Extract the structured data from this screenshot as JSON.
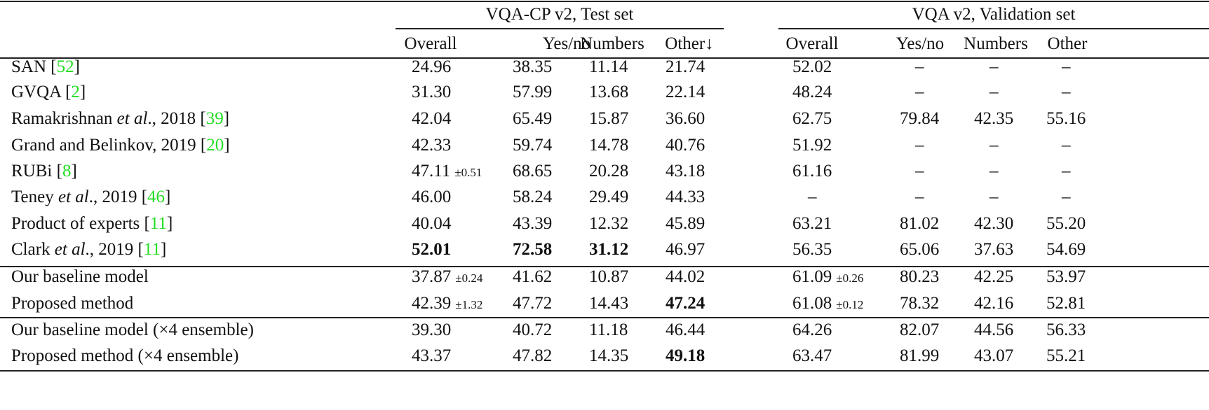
{
  "table": {
    "groups": [
      {
        "label": "VQA-CP v2, Test set"
      },
      {
        "label": "VQA v2, Validation set"
      }
    ],
    "columns": {
      "left": [
        "Overall",
        "Yes/no",
        "Numbers",
        "Other↓"
      ],
      "right": [
        "Overall",
        "Yes/no",
        "Numbers",
        "Other"
      ]
    },
    "rows": [
      {
        "method": "SAN",
        "method_italic": "",
        "method_tail": "",
        "cite": "52",
        "cp": {
          "overall": "24.96",
          "overall_pm": "",
          "yesno": "38.35",
          "numbers": "11.14",
          "other": "21.74"
        },
        "val": {
          "overall": "52.02",
          "overall_pm": "",
          "yesno": "–",
          "numbers": "–",
          "other": "–"
        }
      },
      {
        "method": "GVQA",
        "method_italic": "",
        "method_tail": "",
        "cite": "2",
        "cp": {
          "overall": "31.30",
          "overall_pm": "",
          "yesno": "57.99",
          "numbers": "13.68",
          "other": "22.14"
        },
        "val": {
          "overall": "48.24",
          "overall_pm": "",
          "yesno": "–",
          "numbers": "–",
          "other": "–"
        }
      },
      {
        "method": "Ramakrishnan",
        "method_italic": "et al",
        "method_tail": "., 2018",
        "cite": "39",
        "cp": {
          "overall": "42.04",
          "overall_pm": "",
          "yesno": "65.49",
          "numbers": "15.87",
          "other": "36.60"
        },
        "val": {
          "overall": "62.75",
          "overall_pm": "",
          "yesno": "79.84",
          "numbers": "42.35",
          "other": "55.16"
        }
      },
      {
        "method": "Grand and Belinkov, 2019",
        "method_italic": "",
        "method_tail": "",
        "cite": "20",
        "cp": {
          "overall": "42.33",
          "overall_pm": "",
          "yesno": "59.74",
          "numbers": "14.78",
          "other": "40.76"
        },
        "val": {
          "overall": "51.92",
          "overall_pm": "",
          "yesno": "–",
          "numbers": "–",
          "other": "–"
        }
      },
      {
        "method": "RUBi",
        "method_italic": "",
        "method_tail": "",
        "cite": "8",
        "cp": {
          "overall": "47.11",
          "overall_pm": "±0.51",
          "yesno": "68.65",
          "numbers": "20.28",
          "other": "43.18"
        },
        "val": {
          "overall": "61.16",
          "overall_pm": "",
          "yesno": "–",
          "numbers": "–",
          "other": "–"
        }
      },
      {
        "method": "Teney",
        "method_italic": "et al",
        "method_tail": "., 2019",
        "cite": "46",
        "cp": {
          "overall": "46.00",
          "overall_pm": "",
          "yesno": "58.24",
          "numbers": "29.49",
          "other": "44.33"
        },
        "val": {
          "overall": "–",
          "overall_pm": "",
          "yesno": "–",
          "numbers": "–",
          "other": "–"
        }
      },
      {
        "method": "Product of experts",
        "method_italic": "",
        "method_tail": "",
        "cite": "11",
        "cp": {
          "overall": "40.04",
          "overall_pm": "",
          "yesno": "43.39",
          "numbers": "12.32",
          "other": "45.89"
        },
        "val": {
          "overall": "63.21",
          "overall_pm": "",
          "yesno": "81.02",
          "numbers": "42.30",
          "other": "55.20"
        }
      },
      {
        "method": "Clark",
        "method_italic": "et al",
        "method_tail": "., 2019",
        "cite": "11",
        "cp": {
          "overall": "52.01",
          "overall_pm": "",
          "yesno": "72.58",
          "numbers": "31.12",
          "other": "46.97"
        },
        "val": {
          "overall": "56.35",
          "overall_pm": "",
          "yesno": "65.06",
          "numbers": "37.63",
          "other": "54.69"
        }
      },
      {
        "method": "Our baseline model",
        "method_italic": "",
        "method_tail": "",
        "cite": "",
        "cp": {
          "overall": "37.87",
          "overall_pm": "±0.24",
          "yesno": "41.62",
          "numbers": "10.87",
          "other": "44.02"
        },
        "val": {
          "overall": "61.09",
          "overall_pm": "±0.26",
          "yesno": "80.23",
          "numbers": "42.25",
          "other": "53.97"
        }
      },
      {
        "method": "Proposed method",
        "method_italic": "",
        "method_tail": "",
        "cite": "",
        "cp": {
          "overall": "42.39",
          "overall_pm": "±1.32",
          "yesno": "47.72",
          "numbers": "14.43",
          "other": "47.24"
        },
        "val": {
          "overall": "61.08",
          "overall_pm": "±0.12",
          "yesno": "78.32",
          "numbers": "42.16",
          "other": "52.81"
        }
      },
      {
        "method": "Our baseline model (×4 ensemble)",
        "method_italic": "",
        "method_tail": "",
        "cite": "",
        "cp": {
          "overall": "39.30",
          "overall_pm": "",
          "yesno": "40.72",
          "numbers": "11.18",
          "other": "46.44"
        },
        "val": {
          "overall": "64.26",
          "overall_pm": "",
          "yesno": "82.07",
          "numbers": "44.56",
          "other": "56.33"
        }
      },
      {
        "method": "Proposed method (×4 ensemble)",
        "method_italic": "",
        "method_tail": "",
        "cite": "",
        "cp": {
          "overall": "43.37",
          "overall_pm": "",
          "yesno": "47.82",
          "numbers": "14.35",
          "other": "49.18"
        },
        "val": {
          "overall": "63.47",
          "overall_pm": "",
          "yesno": "81.99",
          "numbers": "43.07",
          "other": "55.21"
        }
      }
    ],
    "bold_cells": [
      {
        "row": 7,
        "col": "cp.overall"
      },
      {
        "row": 7,
        "col": "cp.yesno"
      },
      {
        "row": 7,
        "col": "cp.numbers"
      },
      {
        "row": 9,
        "col": "cp.other"
      },
      {
        "row": 11,
        "col": "cp.other"
      }
    ],
    "colors": {
      "citation": "#22dd22",
      "text": "#111111",
      "rule": "#222222"
    }
  }
}
